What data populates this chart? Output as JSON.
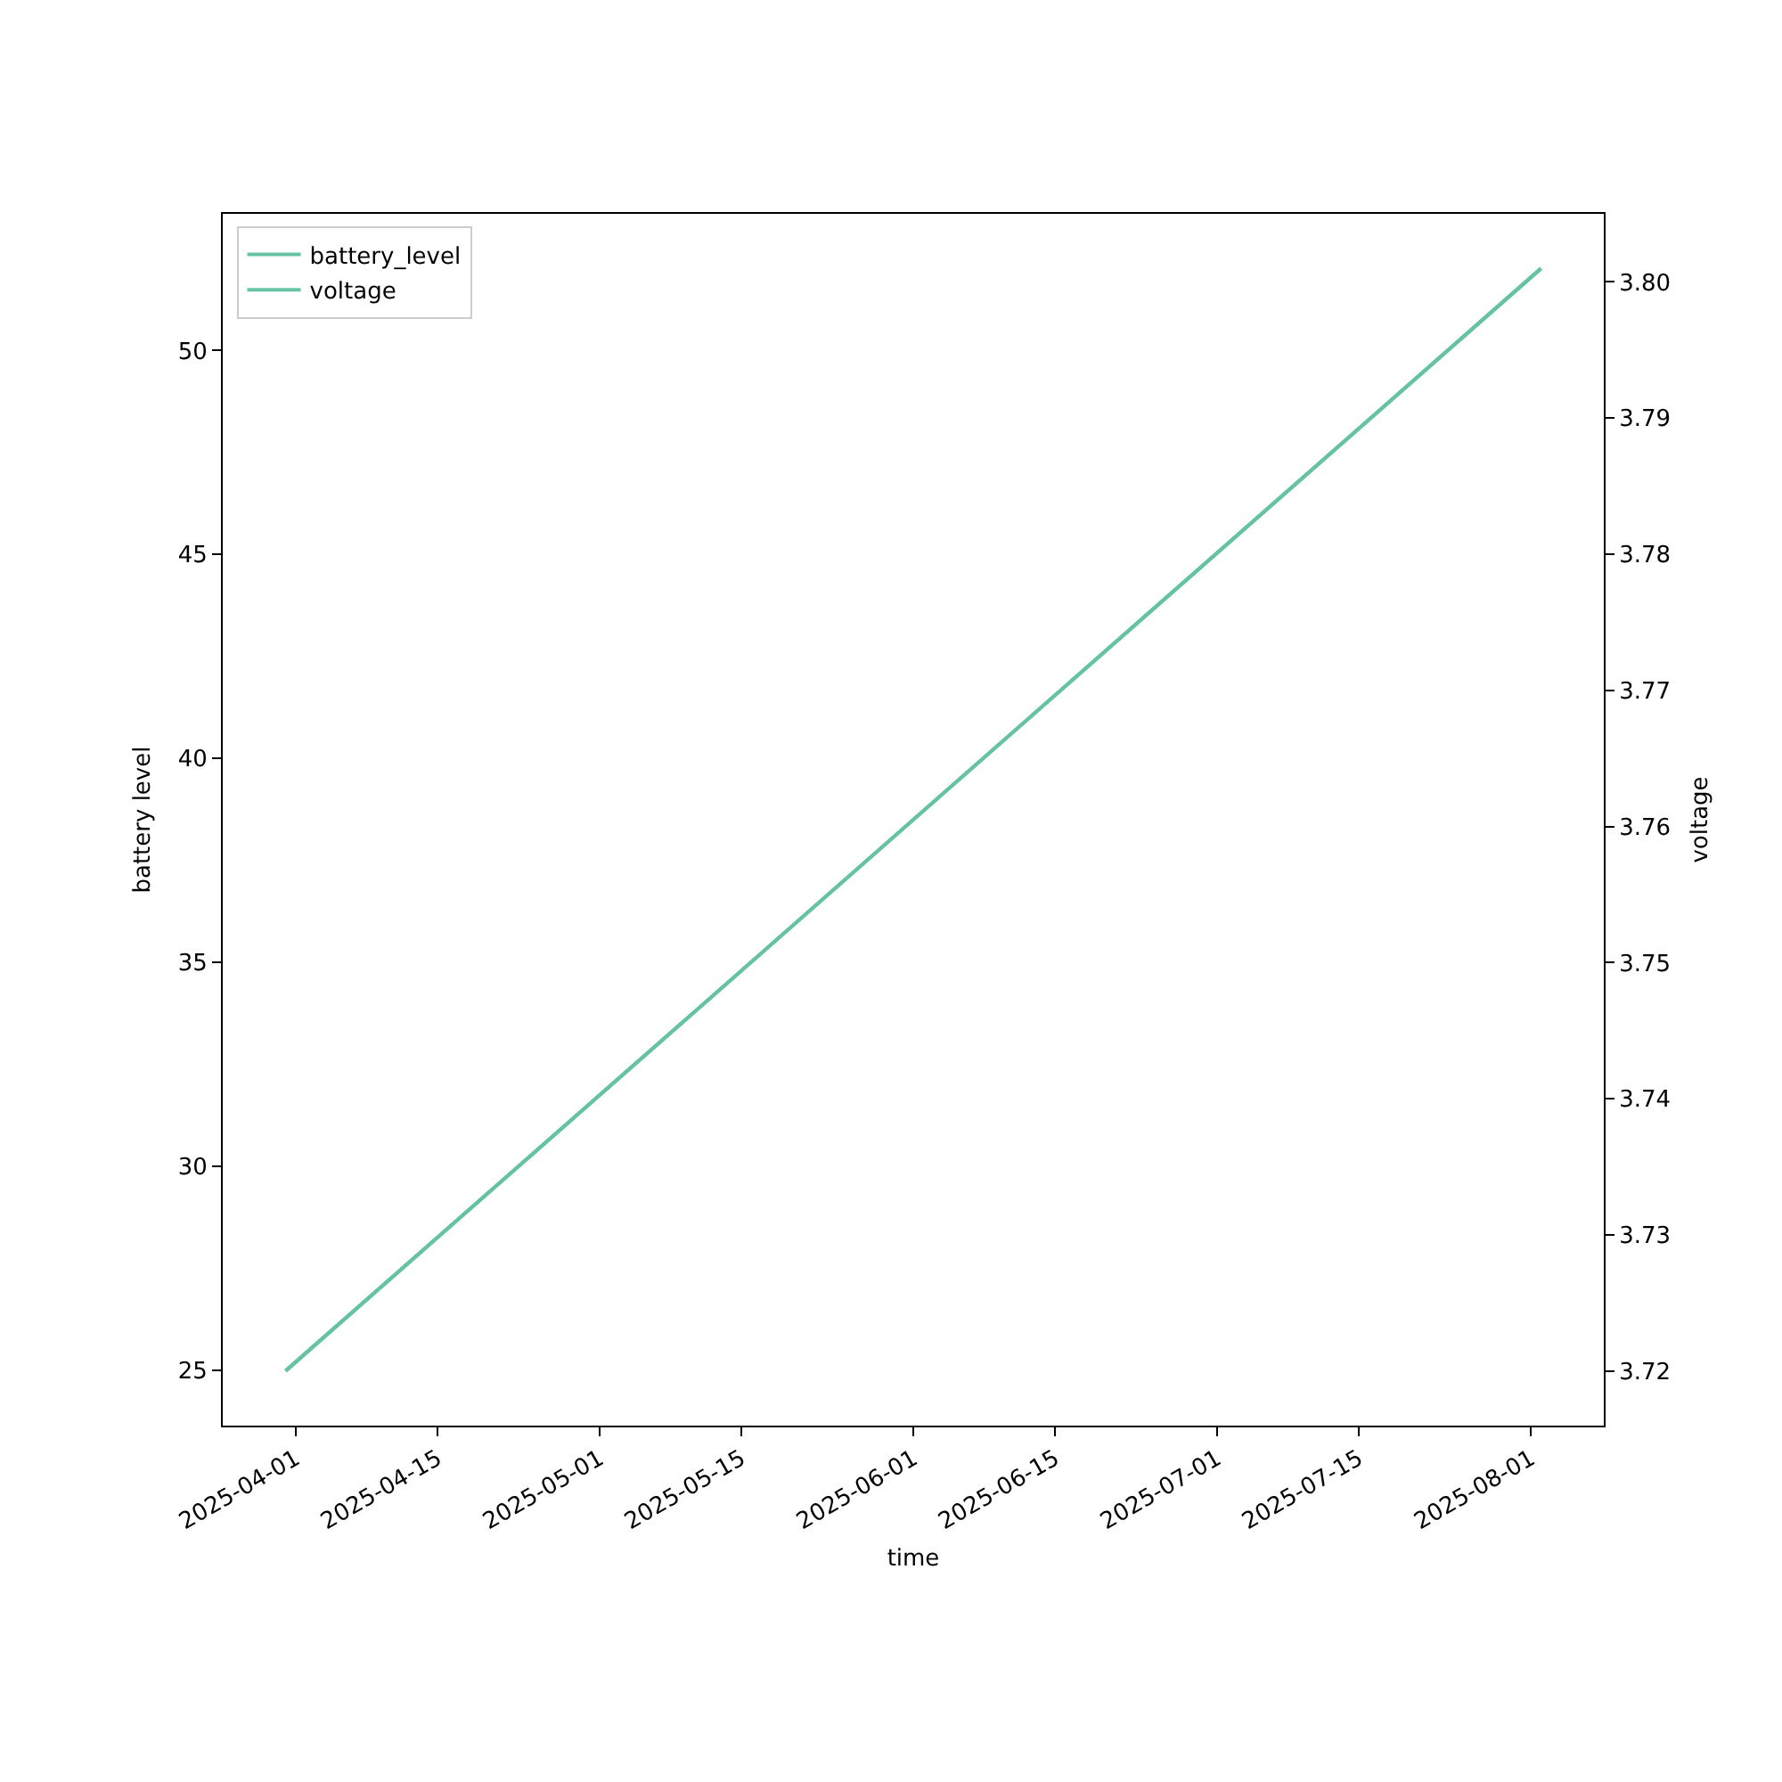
{
  "chart_data": {
    "type": "line",
    "xlabel": "time",
    "ylabel": "battery level",
    "y2label": "voltage",
    "x": [
      "2025-03-31",
      "2025-08-02"
    ],
    "series": [
      {
        "name": "battery_level",
        "color": "#66c2a5",
        "values": [
          25,
          52
        ]
      },
      {
        "name": "voltage",
        "color": "#66c2a5",
        "axis": "y2",
        "values": [
          3.72,
          3.801
        ]
      }
    ],
    "xlim": [
      "2025-03-24T19:00",
      "2025-08-08T05:00"
    ],
    "xticks": [
      "2025-04-01",
      "2025-04-15",
      "2025-05-01",
      "2025-05-15",
      "2025-06-01",
      "2025-06-15",
      "2025-07-01",
      "2025-07-15",
      "2025-08-01"
    ],
    "ylim": [
      23.65,
      53.35
    ],
    "yticks": [
      25,
      30,
      35,
      40,
      45,
      50
    ],
    "y2lim": [
      3.716,
      3.805
    ],
    "y2ticks": [
      3.72,
      3.73,
      3.74,
      3.75,
      3.76,
      3.77,
      3.78,
      3.79,
      {
        "value": 3.8,
        "label": "3.80"
      }
    ],
    "legend": "top left"
  }
}
